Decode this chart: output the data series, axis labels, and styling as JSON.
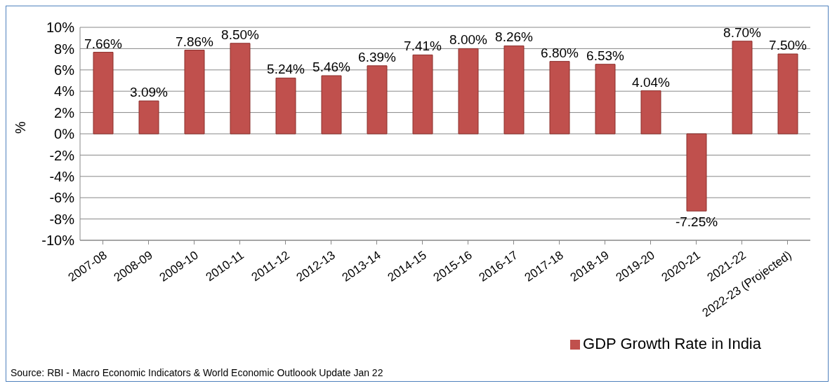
{
  "chart_data": {
    "type": "bar",
    "ylabel": "%",
    "categories": [
      "2007-08",
      "2008-09",
      "2009-10",
      "2010-11",
      "2011-12",
      "2012-13",
      "2013-14",
      "2014-15",
      "2015-16",
      "2016-17",
      "2017-18",
      "2018-19",
      "2019-20",
      "2020-21",
      "2021-22",
      "2022-23 (Projected)"
    ],
    "series": [
      {
        "name": "GDP Growth Rate in India",
        "color": "#c0504d",
        "values": [
          7.66,
          3.09,
          7.86,
          8.5,
          5.24,
          5.46,
          6.39,
          7.41,
          8.0,
          8.26,
          6.8,
          6.53,
          4.04,
          -7.25,
          8.7,
          7.5
        ],
        "value_labels": [
          "7.66%",
          "3.09%",
          "7.86%",
          "8.50%",
          "5.24%",
          "5.46%",
          "6.39%",
          "7.41%",
          "8.00%",
          "8.26%",
          "6.80%",
          "6.53%",
          "4.04%",
          "-7.25%",
          "8.70%",
          "7.50%"
        ]
      }
    ],
    "ylim": [
      -10,
      10
    ],
    "yticks": [
      {
        "value": -10,
        "label": "-10%"
      },
      {
        "value": -8,
        "label": "-8%"
      },
      {
        "value": -6,
        "label": "-6%"
      },
      {
        "value": -4,
        "label": "-4%"
      },
      {
        "value": -2,
        "label": "-2%"
      },
      {
        "value": 0,
        "label": "0%"
      },
      {
        "value": 2,
        "label": "2%"
      },
      {
        "value": 4,
        "label": "4%"
      },
      {
        "value": 6,
        "label": "6%"
      },
      {
        "value": 8,
        "label": "8%"
      },
      {
        "value": 10,
        "label": "10%"
      }
    ],
    "grid": "y",
    "legend": "bottom right",
    "annotations": [
      "Source: RBI - Macro Economic Indicators & World Economic Outloook Update Jan 22"
    ]
  }
}
